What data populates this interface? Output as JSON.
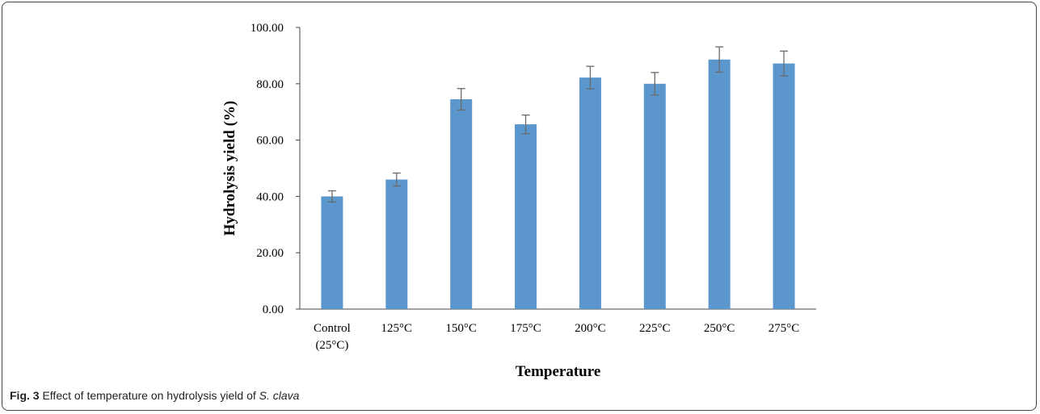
{
  "chart_data": {
    "type": "bar",
    "xlabel": "Temperature",
    "ylabel": "Hydrolysis yield (%)",
    "categories": [
      [
        "Control",
        "(25°C)"
      ],
      [
        "125°C"
      ],
      [
        "150°C"
      ],
      [
        "175°C"
      ],
      [
        "200°C"
      ],
      [
        "225°C"
      ],
      [
        "250°C"
      ],
      [
        "275°C"
      ]
    ],
    "values": [
      40.0,
      46.0,
      74.5,
      65.6,
      82.2,
      80.0,
      88.6,
      87.2
    ],
    "errors": [
      2.0,
      2.3,
      3.8,
      3.3,
      4.0,
      4.0,
      4.5,
      4.4
    ],
    "ylim": [
      0,
      100
    ],
    "yticks": [
      "0.00",
      "20.00",
      "40.00",
      "60.00",
      "80.00",
      "100.00"
    ],
    "bar_color": "#5B96CC",
    "error_color": "#6b6b6b",
    "grid": false
  },
  "caption": {
    "label": "Fig. 3",
    "text": "Effect of temperature on hydrolysis yield of ",
    "species": "S. clava"
  }
}
